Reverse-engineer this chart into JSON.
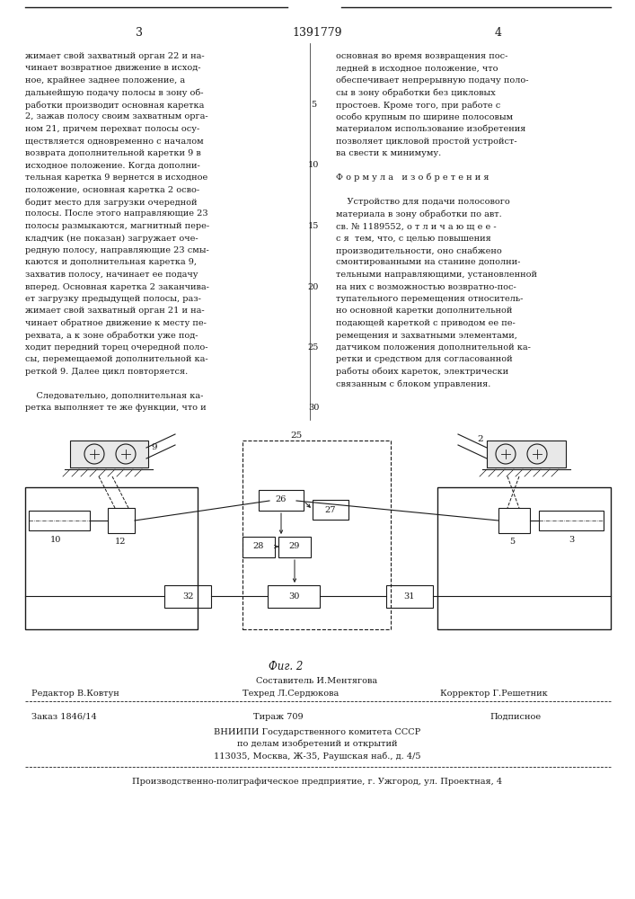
{
  "page_number_left": "3",
  "page_number_center": "1391779",
  "page_number_right": "4",
  "col_left_text": [
    "жимает свой захватный орган 22 и на-",
    "чинает возвратное движение в исход-",
    "ное, крайнее заднее положение, а",
    "дальнейшую подачу полосы в зону об-",
    "работки производит основная каретка",
    "2, зажав полосу своим захватным орга-",
    "ном 21, причем перехват полосы осу-",
    "ществляется одновременно с началом",
    "возврата дополнительной каретки 9 в",
    "исходное положение. Когда дополни-",
    "тельная каретка 9 вернется в исходное",
    "положение, основная каретка 2 осво-",
    "бодит место для загрузки очередной",
    "полосы. После этого направляющие 23",
    "полосы размыкаются, магнитный пере-",
    "кладчик (не показан) загружает оче-",
    "редную полосу, направляющие 23 смы-",
    "каются и дополнительная каретка 9,",
    "захватив полосу, начинает ее подачу",
    "вперед. Основная каретка 2 заканчива-",
    "ет загрузку предыдущей полосы, раз-",
    "жимает свой захватный орган 21 и на-",
    "чинает обратное движение к месту пе-",
    "рехвата, а к зоне обработки уже под-",
    "ходит передний торец очередной поло-",
    "сы, перемещаемой дополнительной ка-",
    "реткой 9. Далее цикл повторяется.",
    "",
    "    Следовательно, дополнительная ка-",
    "ретка выполняет те же функции, что и"
  ],
  "col_right_text": [
    "основная во время возвращения пос-",
    "ледней в исходное положение, что",
    "обеспечивает непрерывную подачу поло-",
    "сы в зону обработки без цикловых",
    "простоев. Кроме того, при работе с",
    "особо крупным по ширине полосовым",
    "материалом использование изобретения",
    "позволяет цикловой простой устройст-",
    "ва свести к минимуму.",
    "",
    "Ф о р м у л а   и з о б р е т е н и я",
    "",
    "    Устройство для подачи полосового",
    "материала в зону обработки по авт.",
    "св. № 1189552, о т л и ч а ю щ е е -",
    "с я  тем, что, с целью повышения",
    "производительности, оно снабжено",
    "смонтированными на станине дополни-",
    "тельными направляющими, установленной",
    "на них с возможностью возвратно-пос-",
    "тупательного перемещения относитель-",
    "но основной каретки дополнительной",
    "подающей кареткой с приводом ее пе-",
    "ремещения и захватными элементами,",
    "датчиком положения дополнительной ка-",
    "ретки и средством для согласованной",
    "работы обоих кареток, электрически",
    "связанным с блоком управления."
  ],
  "fig_caption": "Фиг. 2",
  "footer_sostavitel": "Составитель И.Ментягова",
  "footer_redaktor": "Редактор В.Ковтун",
  "footer_tekhred": "Техред Л.Сердюкова",
  "footer_korrektor": "Корректор Г.Решетник",
  "footer_order": "Заказ 1846/14",
  "footer_tirazh": "Тираж 709",
  "footer_podpisnoe": "Подписное",
  "footer_vniiipi1": "ВНИИПИ Государственного комитета СССР",
  "footer_vniiipi2": "по делам изобретений и открытий",
  "footer_vniiipi3": "113035, Москва, Ж-35, Раушская наб., д. 4/5",
  "footer_predpriyatie": "Производственно-полиграфическое предприятие, г. Ужгород, ул. Проектная, 4",
  "bg_color": "#ffffff",
  "text_color": "#1a1a1a"
}
